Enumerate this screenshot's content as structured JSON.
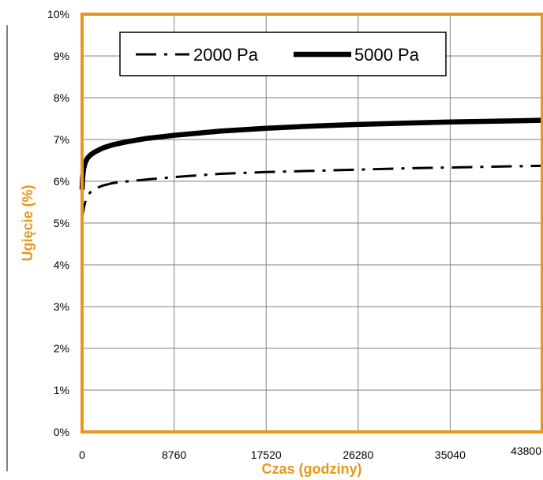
{
  "chart_data": {
    "type": "line",
    "title": "",
    "xlabel": "Czas (godziny)",
    "ylabel": "Ugięcie (%)",
    "xlim": [
      0,
      43800
    ],
    "ylim": [
      0,
      10
    ],
    "x_ticks": [
      0,
      8760,
      17520,
      26280,
      35040,
      43800
    ],
    "x_tick_labels": [
      "0",
      "8760",
      "17520",
      "26280",
      "35040",
      "43800"
    ],
    "y_ticks": [
      0,
      1,
      2,
      3,
      4,
      5,
      6,
      7,
      8,
      9,
      10
    ],
    "y_tick_labels": [
      "0%",
      "1%",
      "2%",
      "3%",
      "4%",
      "5%",
      "6%",
      "7%",
      "8%",
      "9%",
      "10%"
    ],
    "grid": true,
    "legend_position": "top",
    "series": [
      {
        "name": "2000 Pa",
        "style": "dash-dot",
        "x": [
          0,
          50,
          150,
          300,
          500,
          800,
          1200,
          2000,
          3000,
          4380,
          6000,
          8760,
          13140,
          17520,
          21900,
          26280,
          30660,
          35040,
          39420,
          43800
        ],
        "y": [
          5.05,
          5.2,
          5.35,
          5.5,
          5.65,
          5.74,
          5.82,
          5.9,
          5.96,
          6.0,
          6.04,
          6.1,
          6.18,
          6.22,
          6.25,
          6.28,
          6.31,
          6.33,
          6.35,
          6.37
        ]
      },
      {
        "name": "5000 Pa",
        "style": "solid-thick",
        "x": [
          0,
          50,
          150,
          300,
          500,
          800,
          1200,
          2000,
          3000,
          4380,
          6000,
          8760,
          13140,
          17520,
          21900,
          26280,
          30660,
          35040,
          39420,
          43800
        ],
        "y": [
          5.8,
          6.1,
          6.3,
          6.45,
          6.55,
          6.63,
          6.7,
          6.8,
          6.88,
          6.95,
          7.02,
          7.1,
          7.2,
          7.27,
          7.32,
          7.36,
          7.39,
          7.42,
          7.44,
          7.46
        ]
      }
    ],
    "colors": {
      "frame": "#E8961E",
      "axis_title": "#E8961E",
      "grid": "#808080",
      "series": "#000000"
    }
  }
}
